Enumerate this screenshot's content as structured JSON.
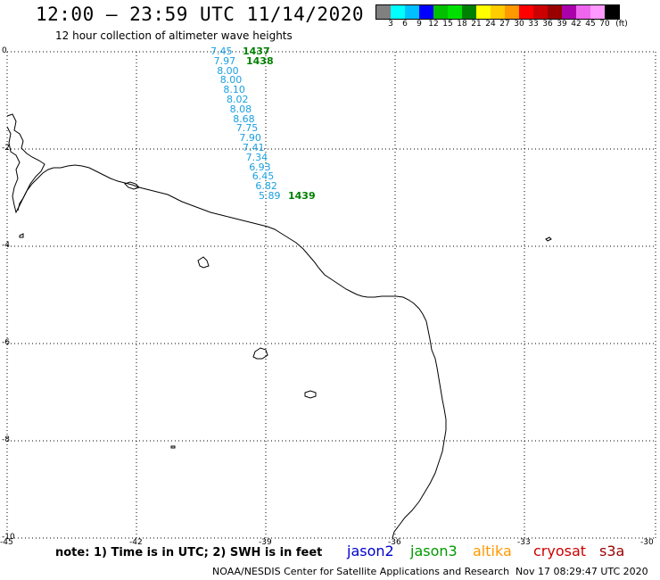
{
  "header": {
    "title": "12:00 – 23:59 UTC 11/14/2020",
    "subtitle": "12 hour collection of altimeter wave heights"
  },
  "colorbar": {
    "colors": [
      "#808080",
      "#00ffff",
      "#00c0ff",
      "#0000ff",
      "#00c000",
      "#00e000",
      "#008000",
      "#ffff00",
      "#ffcc00",
      "#ff9900",
      "#ff0000",
      "#cc0000",
      "#990000",
      "#aa00aa",
      "#ee66ee",
      "#ff99ff",
      "#000000"
    ],
    "labels": [
      "3",
      "6",
      "9",
      "12",
      "15",
      "18",
      "21",
      "24",
      "27",
      "30",
      "33",
      "36",
      "39",
      "42",
      "45",
      "70",
      "(ft)"
    ]
  },
  "axes": {
    "y_ticks": [
      "0",
      "-2",
      "-4",
      "-6",
      "-8",
      "-10"
    ],
    "x_ticks": [
      "-45",
      "-42",
      "-39",
      "-36",
      "-33",
      "-30"
    ]
  },
  "wave_heights": [
    "7.45",
    "7.97",
    "8.00",
    "8.00",
    "8.10",
    "8.02",
    "8.08",
    "8.68",
    "7.75",
    "7.90",
    "7.41",
    "7.34",
    "6.93",
    "6.45",
    "6.82",
    "5.89"
  ],
  "pass_times": [
    "1437",
    "1438",
    "1439"
  ],
  "footer": {
    "note": "note:  1) Time is in UTC;  2) SWH is in feet",
    "satellites": [
      {
        "name": "jason2",
        "color": "#0000cc"
      },
      {
        "name": "jason3",
        "color": "#009900"
      },
      {
        "name": "altika",
        "color": "#ff9900"
      },
      {
        "name": "cryosat",
        "color": "#cc0000"
      },
      {
        "name": "s3a",
        "color": "#990000"
      }
    ],
    "credit": "NOAA/NESDIS Center for Satellite Applications and Research",
    "timestamp": "Nov 17 08:29:47 UTC 2020"
  }
}
